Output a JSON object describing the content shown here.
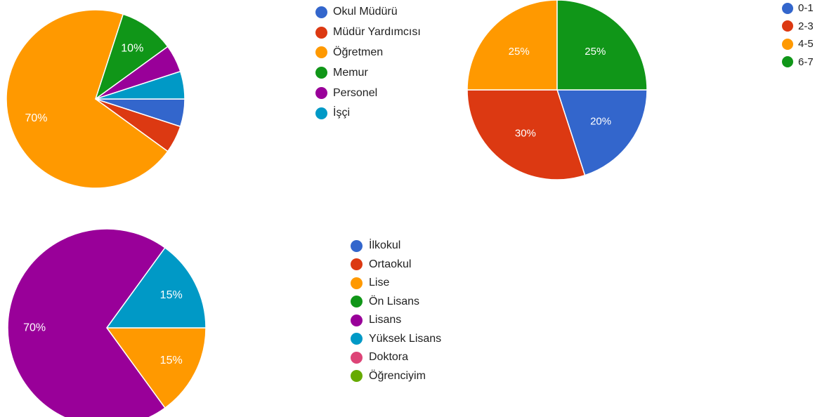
{
  "chart_data": [
    {
      "type": "pie",
      "id": "position",
      "categories": [
        "Okul Müdürü",
        "Müdür Yardımcısı",
        "Öğretmen",
        "Memur",
        "Personel",
        "İşçi"
      ],
      "values": [
        5,
        5,
        70,
        10,
        5,
        5
      ],
      "colors": [
        "#3366cc",
        "#dc3912",
        "#ff9900",
        "#109618",
        "#990099",
        "#0099c6"
      ],
      "data_labels": [
        "",
        "",
        "70%",
        "10%",
        "",
        ""
      ],
      "legend": {
        "position": "right",
        "items": [
          "Okul Müdürü",
          "Müdür Yardımcısı",
          "Öğretmen",
          "Memur",
          "Personel",
          "İşçi"
        ]
      }
    },
    {
      "type": "pie",
      "id": "years",
      "categories": [
        "0-1",
        "2-3",
        "4-5",
        "6-7"
      ],
      "values": [
        20,
        30,
        25,
        25
      ],
      "colors": [
        "#3366cc",
        "#dc3912",
        "#ff9900",
        "#109618"
      ],
      "data_labels": [
        "20%",
        "30%",
        "25%",
        "25%"
      ],
      "legend": {
        "position": "right",
        "items": [
          "0-1",
          "2-3",
          "4-5",
          "6-7"
        ]
      }
    },
    {
      "type": "pie",
      "id": "education",
      "categories": [
        "İlkokul",
        "Ortaokul",
        "Lise",
        "Ön Lisans",
        "Lisans",
        "Yüksek Lisans",
        "Doktora",
        "Öğrenciyim"
      ],
      "values": [
        0,
        0,
        15,
        0,
        70,
        15,
        0,
        0
      ],
      "colors": [
        "#3366cc",
        "#dc3912",
        "#ff9900",
        "#109618",
        "#990099",
        "#0099c6",
        "#dd4477",
        "#66aa00"
      ],
      "data_labels": [
        "",
        "",
        "15%",
        "",
        "70%",
        "15%",
        "",
        ""
      ],
      "legend": {
        "position": "right",
        "items": [
          "İlkokul",
          "Ortaokul",
          "Lise",
          "Ön Lisans",
          "Lisans",
          "Yüksek Lisans",
          "Doktora",
          "Öğrenciyim"
        ]
      }
    }
  ]
}
